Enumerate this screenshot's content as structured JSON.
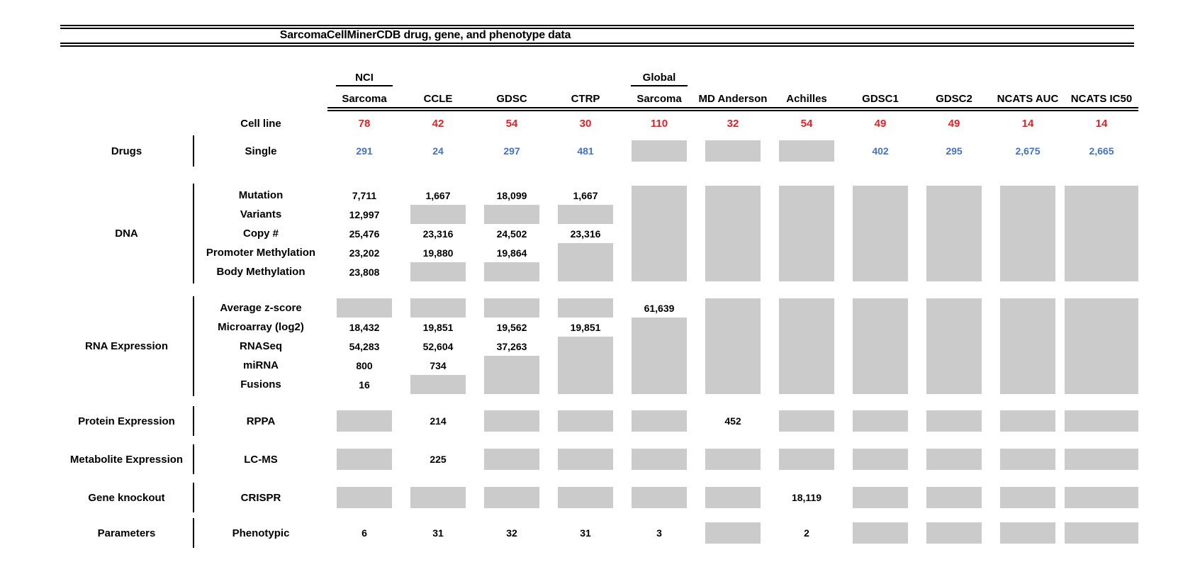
{
  "title": "SarcomaCellMinerCDB drug, gene, and phenotype data",
  "colors": {
    "count_red": "#ED1C24",
    "drug_blue": "#4472C4",
    "missing_gray": "#CBCBCB",
    "line_black": "#000000"
  },
  "columns": [
    {
      "group": "NCI",
      "label": "Sarcoma"
    },
    {
      "label": "CCLE"
    },
    {
      "label": "GDSC"
    },
    {
      "label": "CTRP"
    },
    {
      "group": "Global",
      "label": "Sarcoma"
    },
    {
      "label": "MD Anderson"
    },
    {
      "label": "Achilles"
    },
    {
      "label": "GDSC1"
    },
    {
      "label": "GDSC2"
    },
    {
      "label": "NCATS AUC"
    },
    {
      "label": "NCATS IC50"
    }
  ],
  "cell_line": {
    "label": "Cell line",
    "values": [
      "78",
      "42",
      "54",
      "30",
      "110",
      "32",
      "54",
      "49",
      "49",
      "14",
      "14"
    ]
  },
  "missing_value_marker": "",
  "sections": [
    {
      "category": "Drugs",
      "rows": [
        {
          "label": "Single",
          "color": "blue",
          "values": [
            "291",
            "24",
            "297",
            "481",
            "",
            "",
            "",
            "402",
            "295",
            "2,675",
            "2,665"
          ]
        }
      ]
    },
    {
      "category": "DNA",
      "rows": [
        {
          "label": "Mutation",
          "values": [
            "7,711",
            "1,667",
            "18,099",
            "1,667",
            "",
            "",
            "",
            "",
            "",
            "",
            ""
          ]
        },
        {
          "label": "Variants",
          "values": [
            "12,997",
            "",
            "",
            "",
            "",
            "",
            "",
            "",
            "",
            "",
            ""
          ]
        },
        {
          "label": "Copy #",
          "values": [
            "25,476",
            "23,316",
            "24,502",
            "23,316",
            "",
            "",
            "",
            "",
            "",
            "",
            ""
          ]
        },
        {
          "label": "Promoter Methylation",
          "values": [
            "23,202",
            "19,880",
            "19,864",
            "",
            "",
            "",
            "",
            "",
            "",
            "",
            ""
          ]
        },
        {
          "label": "Body Methylation",
          "values": [
            "23,808",
            "",
            "",
            "",
            "",
            "",
            "",
            "",
            "",
            "",
            ""
          ]
        }
      ]
    },
    {
      "category": "RNA Expression",
      "rows": [
        {
          "label": "Average z-score",
          "values": [
            "",
            "",
            "",
            "",
            "61,639",
            "",
            "",
            "",
            "",
            "",
            ""
          ]
        },
        {
          "label": "Microarray (log2)",
          "values": [
            "18,432",
            "19,851",
            "19,562",
            "19,851",
            "",
            "",
            "",
            "",
            "",
            "",
            ""
          ]
        },
        {
          "label": "RNASeq",
          "values": [
            "54,283",
            "52,604",
            "37,263",
            "",
            "",
            "",
            "",
            "",
            "",
            "",
            ""
          ]
        },
        {
          "label": "miRNA",
          "values": [
            "800",
            "734",
            "",
            "",
            "",
            "",
            "",
            "",
            "",
            "",
            ""
          ]
        },
        {
          "label": "Fusions",
          "values": [
            "16",
            "",
            "",
            "",
            "",
            "",
            "",
            "",
            "",
            "",
            ""
          ]
        }
      ]
    },
    {
      "category": "Protein Expression",
      "rows": [
        {
          "label": "RPPA",
          "values": [
            "",
            "214",
            "",
            "",
            "",
            "452",
            "",
            "",
            "",
            "",
            ""
          ]
        }
      ]
    },
    {
      "category": "Metabolite Expression",
      "rows": [
        {
          "label": "LC-MS",
          "values": [
            "",
            "225",
            "",
            "",
            "",
            "",
            "",
            "",
            "",
            "",
            ""
          ]
        }
      ]
    },
    {
      "category": "Gene knockout",
      "rows": [
        {
          "label": "CRISPR",
          "values": [
            "",
            "",
            "",
            "",
            "",
            "",
            "18,119",
            "",
            "",
            "",
            ""
          ]
        }
      ]
    },
    {
      "category": "Parameters",
      "rows": [
        {
          "label": "Phenotypic",
          "values": [
            "6",
            "31",
            "32",
            "31",
            "3",
            "",
            "2",
            "",
            "",
            "",
            ""
          ]
        }
      ]
    }
  ]
}
